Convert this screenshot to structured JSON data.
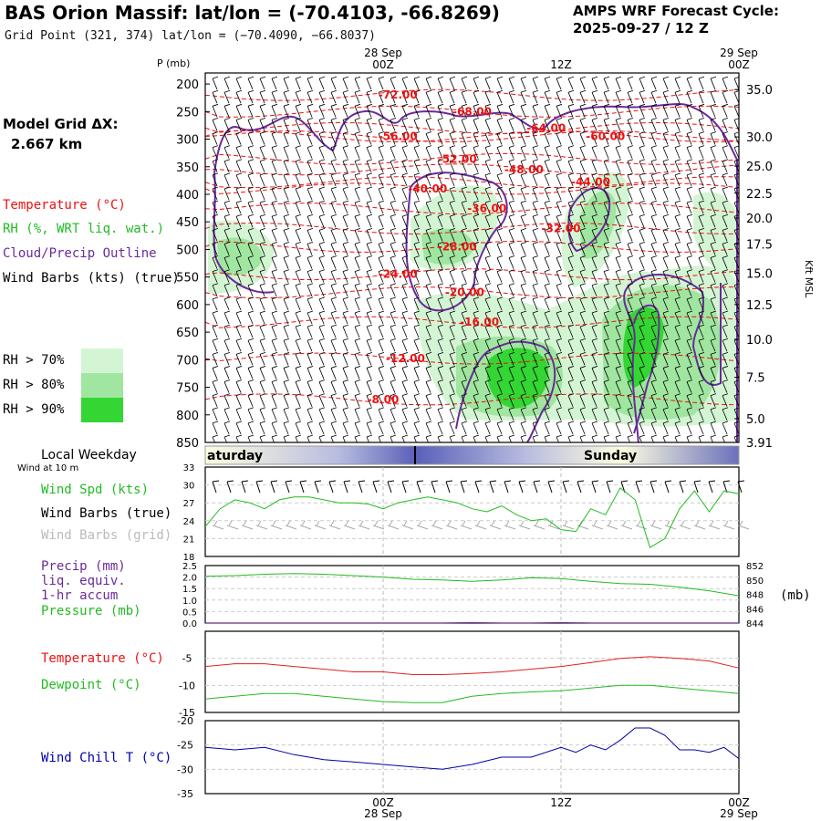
{
  "header": {
    "title": "BAS Orion Massif:  lat/lon = (-70.4103, -66.8269)",
    "subtitle": "Grid Point (321, 374) lat/lon = (−70.4090, −66.8037)",
    "cycle_line1": "AMPS WRF Forecast Cycle:",
    "cycle_line2": "2025-09-27 / 12  Z"
  },
  "time_axis": {
    "top_labels": [
      {
        "date": "28 Sep",
        "time": "00Z",
        "hour": 12
      },
      {
        "date": "",
        "time": "12Z",
        "hour": 24
      },
      {
        "date": "29 Sep",
        "time": "00Z",
        "hour": 36
      }
    ],
    "bottom_labels": [
      {
        "time": "00Z",
        "date": "28 Sep",
        "hour": 12
      },
      {
        "time": "12Z",
        "date": "",
        "hour": 24
      },
      {
        "time": "00Z",
        "date": "29 Sep",
        "hour": 36
      }
    ],
    "start_hour": 0,
    "end_hour": 36
  },
  "legend": {
    "model_grid_label": "Model Grid ΔX:",
    "model_grid_value": "2.667 km",
    "temperature": "Temperature (°C)",
    "rh": "RH (%, WRT liq. wat.)",
    "cloud": "Cloud/Precip Outline",
    "wind_barbs": "Wind Barbs (kts) (true)",
    "rh70": "RH > 70%",
    "rh80": "RH > 80%",
    "rh90": "RH > 90%",
    "colors": {
      "rh70": "#d4f5d4",
      "rh80": "#a0e6a0",
      "rh90": "#33d633",
      "temp": "#ee1111",
      "cloud": "#6a2a9a"
    }
  },
  "chart_data": [
    {
      "type": "heatmap",
      "name": "vertical-cross-section",
      "ylabel": "P (mb)",
      "ylabel_right": "Kft MSL",
      "pressure_ticks": [
        200,
        250,
        300,
        350,
        400,
        450,
        500,
        550,
        600,
        650,
        700,
        750,
        800,
        850
      ],
      "height_ticks": [
        {
          "label": "35.0",
          "p": 210
        },
        {
          "label": "30.0",
          "p": 296
        },
        {
          "label": "25.0",
          "p": 349
        },
        {
          "label": "22.5",
          "p": 398
        },
        {
          "label": "20.0",
          "p": 443
        },
        {
          "label": "17.5",
          "p": 490
        },
        {
          "label": "15.0",
          "p": 543
        },
        {
          "label": "12.5",
          "p": 600
        },
        {
          "label": "10.0",
          "p": 663
        },
        {
          "label": "7.5",
          "p": 732
        },
        {
          "label": "5.0",
          "p": 807
        },
        {
          "label": "3.91",
          "p": 850
        }
      ],
      "ylim": [
        850,
        180
      ],
      "temperature_contour_labels": [
        {
          "text": "-72.00",
          "t": 13,
          "p": 220
        },
        {
          "text": "-68.00",
          "t": 18,
          "p": 250
        },
        {
          "text": "-64.00",
          "t": 23,
          "p": 280
        },
        {
          "text": "-60.00",
          "t": 27,
          "p": 295
        },
        {
          "text": "-56.00",
          "t": 13,
          "p": 295
        },
        {
          "text": "-52.00",
          "t": 17,
          "p": 336
        },
        {
          "text": "-48.00",
          "t": 21.5,
          "p": 355
        },
        {
          "text": "-44.00",
          "t": 26,
          "p": 378
        },
        {
          "text": "-40.00",
          "t": 15,
          "p": 390
        },
        {
          "text": "-36.00",
          "t": 19,
          "p": 426
        },
        {
          "text": "-32.00",
          "t": 24,
          "p": 462
        },
        {
          "text": "-28.00",
          "t": 17,
          "p": 495
        },
        {
          "text": "-24.00",
          "t": 13,
          "p": 545
        },
        {
          "text": "-20.00",
          "t": 17.5,
          "p": 578
        },
        {
          "text": "-16.00",
          "t": 18.5,
          "p": 632
        },
        {
          "text": "-12.00",
          "t": 13.5,
          "p": 698
        },
        {
          "text": "-8.00",
          "t": 12,
          "p": 772
        }
      ]
    },
    {
      "type": "line",
      "name": "wind-speed",
      "label": "Wind Spd (kts)",
      "ylim": [
        18,
        33
      ],
      "yticks": [
        18,
        21,
        24,
        27,
        30,
        33
      ],
      "x": [
        0,
        1,
        2,
        3,
        4,
        5,
        6,
        7,
        8,
        9,
        10,
        11,
        12,
        13,
        14,
        15,
        16,
        17,
        18,
        19,
        20,
        21,
        22,
        23,
        24,
        25,
        26,
        27,
        28,
        29,
        30,
        31,
        32,
        33,
        34,
        35,
        36
      ],
      "values": [
        23,
        26,
        27.5,
        27,
        26,
        27.5,
        28,
        28,
        27.5,
        27,
        27,
        26.8,
        26,
        27,
        27.5,
        28,
        27.5,
        27,
        26,
        25.5,
        26.5,
        25,
        24,
        24.3,
        22.5,
        22.2,
        26,
        25,
        29.5,
        27.5,
        19.5,
        21,
        26,
        29,
        25.5,
        29,
        28.5
      ]
    },
    {
      "type": "line",
      "name": "precip-pressure",
      "labels": [
        "Precip (mm)",
        "liq. equiv.",
        "1-hr accum",
        "Pressure (mb)"
      ],
      "unit_right": "(mb)",
      "precip_ylim": [
        0,
        2.5
      ],
      "precip_ticks": [
        "0.0",
        "0.5",
        "1.0",
        "1.5",
        "2.0",
        "2.5"
      ],
      "pressure_ylim": [
        844,
        852
      ],
      "pressure_ticks": [
        "844",
        "846",
        "848",
        "850",
        "852"
      ],
      "x": [
        0,
        2,
        4,
        6,
        8,
        10,
        12,
        14,
        16,
        18,
        20,
        22,
        24,
        26,
        28,
        30,
        32,
        34,
        36
      ],
      "pressure": [
        850.5,
        850.6,
        850.8,
        850.9,
        850.8,
        850.6,
        850.4,
        850.1,
        850.0,
        849.8,
        850.0,
        850.3,
        850.2,
        849.8,
        849.5,
        849.4,
        849.0,
        848.5,
        847.8
      ],
      "precip": [
        0,
        0,
        0,
        0,
        0,
        0,
        0,
        0,
        0,
        0.02,
        0,
        0,
        0.02,
        0,
        0,
        0,
        0,
        0,
        0
      ]
    },
    {
      "type": "line",
      "name": "temperature-dewpoint",
      "labels": [
        "Temperature (°C)",
        "Dewpoint (°C)"
      ],
      "ylim": [
        -15,
        0
      ],
      "yticks": [
        "-5",
        "-10",
        "-15"
      ],
      "x": [
        0,
        2,
        4,
        6,
        8,
        10,
        12,
        14,
        16,
        18,
        20,
        22,
        24,
        26,
        28,
        30,
        32,
        34,
        36
      ],
      "temperature": [
        -6.5,
        -6,
        -6,
        -6.5,
        -7,
        -7.5,
        -7.5,
        -8,
        -8,
        -7.8,
        -7.5,
        -7,
        -6.5,
        -5.8,
        -5,
        -4.7,
        -5,
        -5.5,
        -6.8
      ],
      "dewpoint": [
        -12.5,
        -12,
        -11.5,
        -11.5,
        -12,
        -12.5,
        -13,
        -13.2,
        -13.2,
        -12,
        -11.5,
        -11.2,
        -11,
        -10.5,
        -10,
        -10,
        -10.5,
        -11,
        -11.5
      ]
    },
    {
      "type": "line",
      "name": "wind-chill",
      "label": "Wind Chill T (°C)",
      "ylim": [
        -35,
        -20
      ],
      "yticks": [
        "-20",
        "-25",
        "-30",
        "-35"
      ],
      "x": [
        0,
        2,
        4,
        6,
        8,
        10,
        12,
        14,
        16,
        18,
        20,
        22,
        24,
        25,
        26,
        27,
        28,
        29,
        30,
        31,
        32,
        33,
        34,
        35,
        36
      ],
      "values": [
        -25.5,
        -26,
        -25.5,
        -27,
        -28,
        -28.5,
        -29,
        -29.5,
        -30,
        -29,
        -27.5,
        -27.5,
        -25.5,
        -26.5,
        -25,
        -26,
        -24,
        -21.5,
        -21.5,
        -23,
        -26,
        -26,
        -26.5,
        -25.5,
        -27.8
      ]
    }
  ],
  "weekday": {
    "title": "Local Weekday",
    "subtitle": "Wind at 10 m",
    "saturday": "aturday",
    "sunday": "Sunday"
  },
  "panels": {
    "wind_barbs_true": "Wind Barbs (true)",
    "wind_barbs_grid": "Wind Barbs (grid)"
  }
}
